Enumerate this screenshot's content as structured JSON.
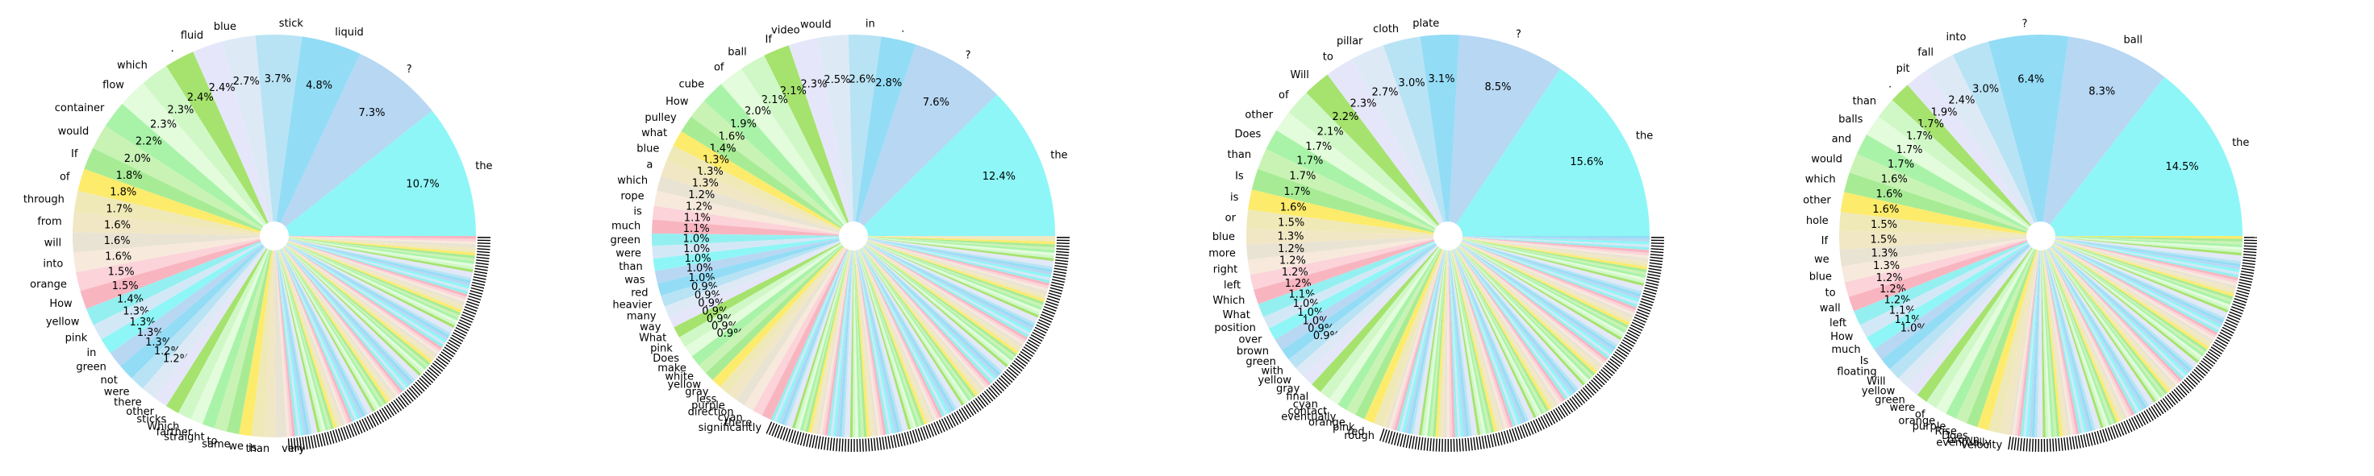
{
  "chart_data": [
    {
      "type": "pie",
      "labels": [
        "the",
        "?",
        "liquid",
        "stick",
        "blue",
        "fluid",
        ".",
        "which",
        "flow",
        "container",
        "would",
        "If",
        "of",
        "through",
        "from",
        "will",
        "into",
        "orange",
        "How",
        "yellow",
        "pink",
        "in",
        "green",
        "not",
        "were",
        "there",
        "other",
        "sticks",
        "Which",
        "farther",
        "straight",
        "to",
        "same",
        "we",
        "is",
        "than",
        "very"
      ],
      "values": [
        10.7,
        7.3,
        4.8,
        3.7,
        2.7,
        2.4,
        2.4,
        2.3,
        2.3,
        2.2,
        2.0,
        1.8,
        1.8,
        1.7,
        1.6,
        1.6,
        1.6,
        1.5,
        1.5,
        1.4,
        1.3,
        1.3,
        1.3,
        1.3,
        1.2,
        1.2,
        1.1,
        1.1,
        1.1,
        1.0,
        1.0,
        1.0,
        1.0,
        1.0,
        1.0,
        0.9,
        0.9
      ],
      "value_labels": [
        "10.7%",
        "7.3%",
        "4.8%",
        "3.7%",
        "2.7%",
        "2.4%",
        "2.4%",
        "2.3%",
        "2.3%",
        "2.2%",
        "2.0%",
        "1.8%",
        "1.8%",
        "1.7%",
        "1.6%",
        "1.6%",
        "1.6%",
        "1.5%",
        "1.5%",
        "1.4%",
        "1.3%",
        "1.3%",
        "1.3%",
        "1.3%",
        "1.2%",
        "1.2%",
        "",
        "",
        "",
        "",
        "",
        "",
        "",
        "",
        "",
        "",
        ""
      ]
    },
    {
      "type": "pie",
      "labels": [
        "the",
        "?",
        ".",
        "in",
        "would",
        "video",
        "If",
        "ball",
        "of",
        "cube",
        "How",
        "pulley",
        "what",
        "blue",
        "a",
        "which",
        "rope",
        "is",
        "much",
        "green",
        "were",
        "than",
        "was",
        "red",
        "heavier",
        "many",
        "way",
        "What",
        "pink",
        "Does",
        "make",
        "white",
        "yellow",
        "gray",
        "less",
        "purple",
        "direction",
        "cyan",
        "there",
        "significantly"
      ],
      "values": [
        12.4,
        7.6,
        2.8,
        2.6,
        2.5,
        2.3,
        2.1,
        2.1,
        2.0,
        1.9,
        1.6,
        1.4,
        1.3,
        1.3,
        1.3,
        1.2,
        1.2,
        1.1,
        1.1,
        1.0,
        1.0,
        1.0,
        1.0,
        1.0,
        0.9,
        0.9,
        0.9,
        0.9,
        0.9,
        0.9,
        0.9,
        0.8,
        0.8,
        0.8,
        0.8,
        0.8,
        0.8,
        0.8,
        0.8,
        0.8
      ],
      "value_labels": [
        "12.4%",
        "7.6%",
        "2.8%",
        "2.6%",
        "2.5%",
        "2.3%",
        "2.1%",
        "2.1%",
        "2.0%",
        "1.9%",
        "1.6%",
        "1.4%",
        "1.3%",
        "1.3%",
        "1.3%",
        "1.2%",
        "1.2%",
        "1.1%",
        "1.1%",
        "1.0%",
        "1.0%",
        "1.0%",
        "1.0%",
        "1.0%",
        "0.9%",
        "0.9%",
        "0.9%",
        "0.9%",
        "0.9%",
        "0.9%",
        "0.9%",
        "",
        "",
        "",
        "",
        "",
        "",
        "",
        "",
        ""
      ]
    },
    {
      "type": "pie",
      "labels": [
        "the",
        "?",
        "plate",
        "cloth",
        "pillar",
        "to",
        "Will",
        "of",
        "other",
        "Does",
        "than",
        "Is",
        "is",
        "or",
        "blue",
        "more",
        "right",
        "left",
        "Which",
        "What",
        "position",
        "over",
        "brown",
        "green",
        "with",
        "yellow",
        "gray",
        "final",
        "cyan",
        "contact",
        "eventually",
        "orange",
        "pink",
        "red",
        "rough"
      ],
      "values": [
        15.6,
        8.5,
        3.1,
        3.0,
        2.7,
        2.3,
        2.2,
        2.1,
        1.7,
        1.7,
        1.7,
        1.7,
        1.6,
        1.5,
        1.3,
        1.2,
        1.2,
        1.2,
        1.2,
        1.1,
        1.0,
        1.0,
        1.0,
        0.9,
        0.9,
        0.9,
        0.9,
        0.9,
        0.9,
        0.8,
        0.8,
        0.8,
        0.8,
        0.8,
        0.8
      ],
      "value_labels": [
        "15.6%",
        "8.5%",
        "3.1%",
        "3.0%",
        "2.7%",
        "2.3%",
        "2.2%",
        "2.1%",
        "1.7%",
        "1.7%",
        "1.7%",
        "1.7%",
        "1.6%",
        "1.5%",
        "1.3%",
        "1.2%",
        "1.2%",
        "1.2%",
        "1.2%",
        "1.1%",
        "1.0%",
        "1.0%",
        "1.0%",
        "0.9%",
        "0.9%",
        "",
        "",
        "",
        "",
        "",
        "",
        "",
        "",
        "",
        ""
      ]
    },
    {
      "type": "pie",
      "labels": [
        "the",
        "ball",
        "?",
        "into",
        "fall",
        "pit",
        ".",
        "than",
        "balls",
        "and",
        "would",
        "which",
        "other",
        "hole",
        "If",
        "we",
        "blue",
        "to",
        "wall",
        "left",
        "How",
        "much",
        "Is",
        "floating",
        "Will",
        "yellow",
        "green",
        "were",
        "of",
        "orange",
        "purple",
        "Rise",
        "Does",
        "brown",
        "eventually",
        "velocity"
      ],
      "values": [
        14.5,
        8.3,
        6.4,
        3.0,
        2.4,
        1.9,
        1.7,
        1.7,
        1.7,
        1.7,
        1.6,
        1.6,
        1.6,
        1.5,
        1.5,
        1.3,
        1.3,
        1.2,
        1.2,
        1.2,
        1.1,
        1.1,
        1.0,
        1.0,
        1.0,
        1.0,
        1.0,
        0.9,
        0.9,
        0.9,
        0.9,
        0.9,
        0.9,
        0.9,
        0.9,
        0.8
      ],
      "value_labels": [
        "14.5%",
        "8.3%",
        "6.4%",
        "3.0%",
        "2.4%",
        "1.9%",
        "1.7%",
        "1.7%",
        "1.7%",
        "1.7%",
        "1.6%",
        "1.6%",
        "1.6%",
        "1.5%",
        "1.5%",
        "1.3%",
        "1.3%",
        "1.2%",
        "1.2%",
        "1.2%",
        "1.1%",
        "1.1%",
        "1.0%",
        "",
        "",
        "",
        "",
        "",
        "",
        "",
        "",
        "",
        "",
        "",
        "",
        ""
      ]
    }
  ],
  "palette": [
    "#8ef6f6",
    "#b7d7f3",
    "#93dcf6",
    "#b8e3f4",
    "#ddeaf6",
    "#e6e6fb",
    "#a6e36e",
    "#d0f8c7",
    "#e3fcdc",
    "#a9f3a8",
    "#c9f3b5",
    "#a7ec95",
    "#fdeb6b",
    "#efe9b8",
    "#f1e7c4",
    "#e9e3d3",
    "#f7e9dc",
    "#fbd3d9",
    "#f8b5c0",
    "#94f0f0",
    "#d3e8f6"
  ]
}
